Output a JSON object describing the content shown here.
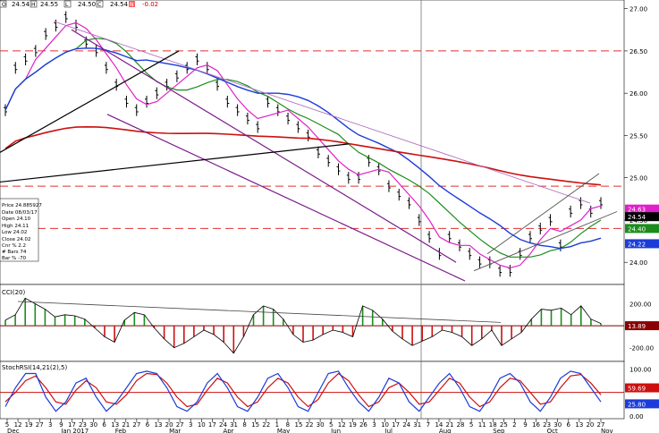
{
  "header": {
    "open": "24.54",
    "high": "24.55",
    "low": "24.50",
    "close": "24.54",
    "change": "-0.02",
    "labels": [
      "O",
      "H",
      "L",
      "C"
    ]
  },
  "info_box": [
    "Price  24.885927",
    "Date  08/03/17",
    "Open  24.10",
    "High  24.11",
    "Low  24.02",
    "Close  24.02",
    "Cnr %  2.2",
    "# Bars  74",
    "Bar %  -70"
  ],
  "colors": {
    "price_bars": "#000000",
    "ma_fast": "#e020c8",
    "ma_green": "#1c8c1c",
    "ma_blue": "#1c3cd8",
    "ma_red": "#cc1010",
    "dashed_level": "#e03030",
    "channel_purple": "#7a1a8a",
    "tag_white": "#ffffff",
    "tag_black": "#000000",
    "tag_magenta": "#e020c8",
    "tag_green": "#1c8c1c",
    "tag_blue": "#1c3cd8",
    "tag_red": "#8b0000",
    "tag_blue_dark": "#1c3cd8"
  },
  "chart_data": [
    {
      "type": "ohlc",
      "panel": "price",
      "y_ticks": [
        "27.00",
        "26.50",
        "26.00",
        "25.50",
        "25.00",
        "24.50",
        "24.00"
      ],
      "ylim": [
        23.78,
        27.06
      ],
      "dashed_levels": [
        26.5,
        24.9,
        24.4
      ],
      "right_tags": [
        "24.63",
        "24.54",
        "24.40",
        "24.22"
      ],
      "series": [
        {
          "name": "price",
          "values": [
            25.8,
            26.3,
            26.4,
            26.5,
            26.7,
            26.8,
            26.9,
            26.8,
            26.6,
            26.5,
            26.3,
            26.1,
            25.9,
            25.8,
            25.9,
            26.0,
            26.1,
            26.2,
            26.3,
            26.4,
            26.3,
            26.1,
            25.9,
            25.8,
            25.7,
            25.6,
            25.9,
            25.8,
            25.7,
            25.6,
            25.5,
            25.3,
            25.2,
            25.1,
            25.0,
            25.0,
            25.2,
            25.1,
            24.9,
            24.8,
            24.7,
            24.5,
            24.3,
            24.1,
            24.3,
            24.2,
            24.1,
            24.0,
            24.0,
            23.9,
            23.9,
            24.1,
            24.3,
            24.4,
            24.5,
            24.2,
            24.6,
            24.7,
            24.6,
            24.7
          ]
        }
      ]
    },
    {
      "type": "line",
      "panel": "cci",
      "title": "CCI(20)",
      "y_ticks": [
        "200.00",
        "-200.00"
      ],
      "right_tag": "13.89",
      "ylim": [
        -300,
        350
      ],
      "values": [
        50,
        100,
        250,
        200,
        150,
        80,
        100,
        90,
        60,
        -20,
        -100,
        -150,
        50,
        120,
        100,
        -20,
        -120,
        -200,
        -160,
        -100,
        -40,
        -80,
        -150,
        -250,
        -100,
        100,
        180,
        150,
        60,
        -80,
        -150,
        -130,
        -80,
        -40,
        -60,
        -100,
        180,
        140,
        60,
        -50,
        -120,
        -180,
        -140,
        -100,
        -40,
        -60,
        -100,
        -180,
        -120,
        -40,
        -180,
        -120,
        -60,
        60,
        150,
        140,
        160,
        100,
        180,
        60,
        20
      ]
    },
    {
      "type": "line",
      "panel": "stochrsi",
      "title": "StochRSI(14,21(2),5)",
      "y_ticks": [
        "100.00",
        "0.00"
      ],
      "right_tags": [
        "59.69",
        "25.80"
      ],
      "ylim": [
        0,
        110
      ],
      "values": [
        20,
        60,
        90,
        90,
        40,
        10,
        30,
        70,
        80,
        40,
        10,
        30,
        60,
        90,
        95,
        90,
        60,
        20,
        10,
        30,
        70,
        90,
        60,
        20,
        10,
        40,
        80,
        90,
        60,
        20,
        10,
        50,
        90,
        95,
        60,
        30,
        10,
        40,
        80,
        70,
        30,
        10,
        40,
        70,
        90,
        60,
        20,
        10,
        40,
        80,
        90,
        70,
        30,
        10,
        40,
        80,
        95,
        90,
        60,
        30
      ],
      "signal": [
        30,
        50,
        75,
        85,
        60,
        30,
        25,
        55,
        75,
        60,
        30,
        25,
        45,
        75,
        90,
        88,
        70,
        40,
        20,
        25,
        55,
        80,
        70,
        40,
        20,
        30,
        60,
        80,
        70,
        40,
        20,
        35,
        70,
        90,
        75,
        45,
        20,
        30,
        60,
        70,
        50,
        25,
        30,
        55,
        80,
        70,
        40,
        20,
        30,
        60,
        80,
        75,
        50,
        25,
        30,
        60,
        85,
        88,
        70,
        45
      ]
    },
    {
      "type": "axis",
      "x_ticks": [
        "5",
        "12",
        "19",
        "27",
        "3",
        "9",
        "17",
        "23",
        "30",
        "6",
        "13",
        "21",
        "27",
        "6",
        "13",
        "20",
        "27",
        "3",
        "10",
        "17",
        "24",
        "31",
        "8",
        "15",
        "22",
        "1",
        "8",
        "15",
        "22",
        "30",
        "5",
        "12",
        "19",
        "26",
        "3",
        "10",
        "17",
        "24",
        "31",
        "7",
        "14",
        "21",
        "28",
        "5",
        "11",
        "18",
        "25",
        "2",
        "9",
        "16",
        "23",
        "30",
        "6",
        "13",
        "20",
        "27"
      ],
      "month_labels": [
        "Dec",
        "Jan 2017",
        "Feb",
        "Mar",
        "Apr",
        "May",
        "Jun",
        "Jul",
        "Aug",
        "Sep",
        "Oct",
        "Nov"
      ]
    }
  ]
}
